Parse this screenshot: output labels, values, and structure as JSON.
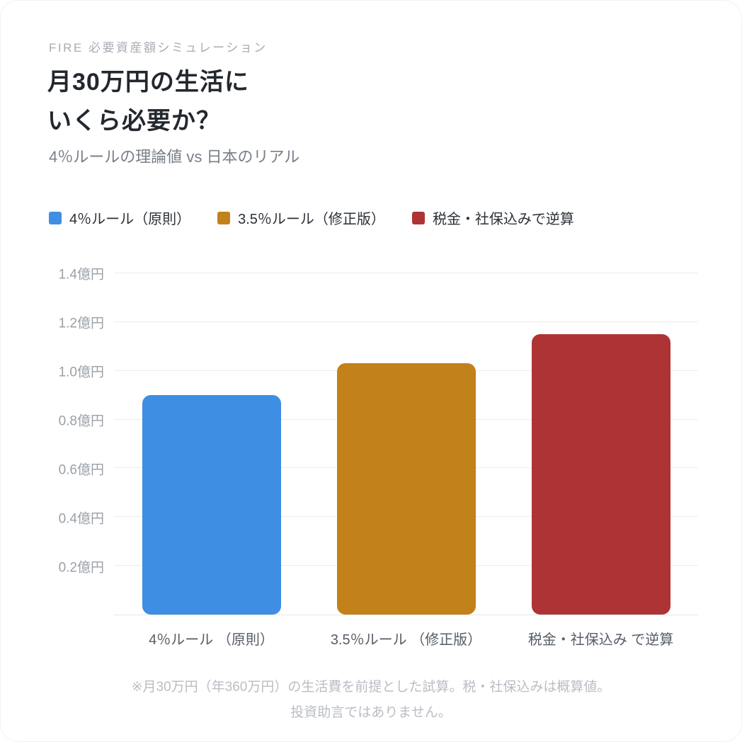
{
  "header": {
    "eyebrow": "FIRE 必要資産額シミュレーション",
    "title_line1": "月30万円の生活に",
    "title_line2": "いくら必要か？",
    "subtitle": "4％ルールの理論値 vs 日本のリアル"
  },
  "legend": {
    "items": [
      {
        "label": "4％ルール（原則）",
        "color": "#3e8ee3"
      },
      {
        "label": "3.5％ルール（修正版）",
        "color": "#c2811a"
      },
      {
        "label": "税金・社保込みで逆算",
        "color": "#ae3335"
      }
    ]
  },
  "chart_data": {
    "type": "bar",
    "categories": [
      "4％ルール （原則）",
      "3.5％ルール （修正版）",
      "税金・社保込み で逆算"
    ],
    "values": [
      0.9,
      1.03,
      1.15
    ],
    "unit": "億円",
    "colors": [
      "#3e8ee3",
      "#c2811a",
      "#ae3335"
    ],
    "title": "月30万円の生活に いくら必要か？",
    "xlabel": "",
    "ylabel": "",
    "ylim": [
      0,
      1.4
    ],
    "ytick_step": 0.2,
    "ytick_labels": [
      "0.2億円",
      "0.4億円",
      "0.6億円",
      "0.8億円",
      "1.0億円",
      "1.2億円",
      "1.4億円"
    ],
    "grid": true,
    "legend_position": "top"
  },
  "footer": {
    "line1": "※月30万円（年360万円）の生活費を前提とした試算。税・社保込みは概算値。",
    "line2": "投資助言ではありません。"
  }
}
